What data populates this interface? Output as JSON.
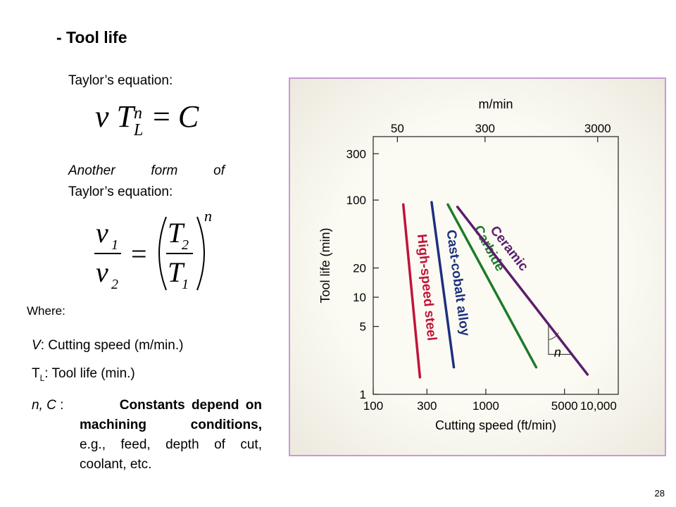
{
  "slide": {
    "title": "- Tool life",
    "taylor_label": "Taylor’s equation:",
    "another_form_line1": "Another form of",
    "another_form_line2": "Taylor’s equation:",
    "where_label": "Where:",
    "def_v_symbol": "V",
    "def_v_text": ": Cutting speed (m/min.)",
    "def_tl_symbol": "T",
    "def_tl_sub": "L",
    "def_tl_text": ": Tool life (min.)",
    "def_nc_symbol": "n, C",
    "def_nc_line1": "Constants depend on",
    "def_nc_line2": "machining conditions,",
    "def_nc_line3": "e.g., feed, depth of cut,",
    "def_nc_line4": "coolant, etc.",
    "page_number": "28"
  },
  "equations": {
    "eq1": {
      "v": "v",
      "T": "T",
      "n": "n",
      "L": "L",
      "eq": "=",
      "C": "C"
    },
    "eq2": {
      "v": "v",
      "sub1": "1",
      "sub2": "2",
      "T": "T",
      "n": "n",
      "eq": "="
    }
  },
  "chart_data": {
    "type": "line",
    "xscale": "log",
    "yscale": "log",
    "xlabel": "Cutting speed (ft/min)",
    "ylabel": "Tool life (min)",
    "x2label": "m/min",
    "xlim": [
      100,
      15000
    ],
    "ylim": [
      1,
      450
    ],
    "x_ticks": [
      100,
      300,
      1000,
      5000,
      10000
    ],
    "x_tick_labels": [
      "100",
      "300",
      "1000",
      "5000",
      "10,000"
    ],
    "x2_ticks": [
      50,
      300,
      3000
    ],
    "x2_tick_labels": [
      "50",
      "300",
      "3000"
    ],
    "y_ticks": [
      1,
      5,
      10,
      20,
      100,
      300
    ],
    "y_tick_labels": [
      "1",
      "5",
      "10",
      "20",
      "100",
      "300"
    ],
    "grid": false,
    "series": [
      {
        "name": "High-speed steel",
        "color": "#c0133a",
        "points": [
          [
            185,
            90
          ],
          [
            260,
            1.5
          ]
        ]
      },
      {
        "name": "Cast-cobalt alloy",
        "color": "#1d2f7e",
        "points": [
          [
            330,
            95
          ],
          [
            520,
            1.9
          ]
        ]
      },
      {
        "name": "Carbide",
        "color": "#1f7a2b",
        "points": [
          [
            460,
            90
          ],
          [
            2800,
            1.9
          ]
        ]
      },
      {
        "name": "Ceramic",
        "color": "#5b1d6e",
        "points": [
          [
            560,
            85
          ],
          [
            8000,
            1.6
          ]
        ]
      }
    ],
    "annotation": "n"
  }
}
